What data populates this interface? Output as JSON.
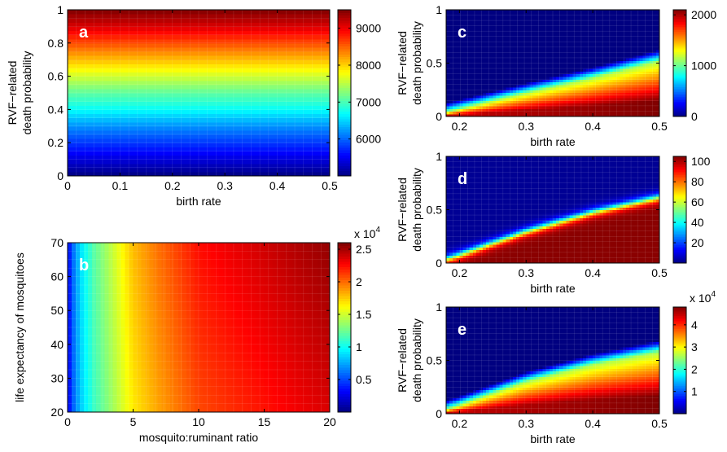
{
  "chart_data": [
    {
      "panel": "a",
      "type": "heatmap",
      "letter": "a",
      "xlabel": "birth rate",
      "ylabel": [
        "RVF−related",
        "death probability"
      ],
      "xlim": [
        0,
        0.5
      ],
      "ylim": [
        0,
        1
      ],
      "xticks": [
        0,
        0.1,
        0.2,
        0.3,
        0.4,
        0.5
      ],
      "xtick_labels": [
        "0",
        "0.1",
        "0.2",
        "0.3",
        "0.4",
        "0.5"
      ],
      "yticks": [
        0,
        0.2,
        0.4,
        0.6,
        0.8,
        1
      ],
      "ytick_labels": [
        "0",
        "0.2",
        "0.4",
        "0.6",
        "0.8",
        "1"
      ],
      "colorbar": {
        "range": [
          5000,
          9500
        ],
        "ticks": [
          6000,
          7000,
          8000,
          9000
        ],
        "tick_labels": [
          "6000",
          "7000",
          "8000",
          "9000"
        ],
        "multiplier": ""
      },
      "pattern": "horizontal",
      "samples": {
        "description_axis": "y (death probability) vs value (roughly independent of birth rate)",
        "y": [
          0,
          0.1,
          0.2,
          0.3,
          0.4,
          0.5,
          0.6,
          0.7,
          0.8,
          0.9,
          1.0
        ],
        "value": [
          5000,
          5400,
          5800,
          6200,
          6700,
          7100,
          7600,
          8100,
          8600,
          9100,
          9500
        ]
      }
    },
    {
      "panel": "b",
      "type": "heatmap",
      "letter": "b",
      "xlabel": "mosquito:ruminant ratio",
      "ylabel": [
        "life expectancy of mosquitoes"
      ],
      "xlim": [
        0,
        20
      ],
      "ylim": [
        20,
        70
      ],
      "xticks": [
        0,
        5,
        10,
        15,
        20
      ],
      "xtick_labels": [
        "0",
        "5",
        "10",
        "15",
        "20"
      ],
      "yticks": [
        20,
        30,
        40,
        50,
        60,
        70
      ],
      "ytick_labels": [
        "20",
        "30",
        "40",
        "50",
        "60",
        "70"
      ],
      "colorbar": {
        "range": [
          0,
          26000
        ],
        "ticks": [
          5000,
          10000,
          15000,
          20000,
          25000
        ],
        "tick_labels": [
          "0.5",
          "1",
          "1.5",
          "2",
          "2.5"
        ],
        "multiplier": "x 10",
        "exponent": "4"
      },
      "pattern": "saturating",
      "samples": {
        "description_axis": "x (mosquito:ruminant ratio) vs value (weak dependence on life expectancy)",
        "x": [
          0,
          0.5,
          1,
          2,
          3,
          4,
          5,
          7,
          10,
          15,
          20
        ],
        "value": [
          3000,
          6500,
          9000,
          12000,
          14000,
          16000,
          18000,
          20000,
          22500,
          24000,
          25500
        ]
      }
    },
    {
      "panel": "c",
      "type": "heatmap",
      "letter": "c",
      "xlabel": "birth rate",
      "ylabel": [
        "RVF−related",
        "death probability"
      ],
      "xlim": [
        0.18,
        0.5
      ],
      "ylim": [
        0,
        1
      ],
      "xticks": [
        0.2,
        0.3,
        0.4,
        0.5
      ],
      "xtick_labels": [
        "0.2",
        "0.3",
        "0.4",
        "0.5"
      ],
      "yticks": [
        0,
        0.5,
        1
      ],
      "ytick_labels": [
        "0",
        "0.5",
        "1"
      ],
      "colorbar": {
        "range": [
          0,
          2100
        ],
        "ticks": [
          0,
          1000,
          2000
        ],
        "tick_labels": [
          "0",
          "1000",
          "2000"
        ],
        "multiplier": ""
      },
      "pattern": "wedge",
      "boundary": {
        "x": [
          0.18,
          0.2,
          0.3,
          0.4,
          0.5
        ],
        "y": [
          0.04,
          0.07,
          0.22,
          0.36,
          0.52
        ]
      },
      "band_width": 0.22
    },
    {
      "panel": "d",
      "type": "heatmap",
      "letter": "d",
      "xlabel": "birth rate",
      "ylabel": [
        "RVF−related",
        "death probability"
      ],
      "xlim": [
        0.18,
        0.5
      ],
      "ylim": [
        0,
        1
      ],
      "xticks": [
        0.2,
        0.3,
        0.4,
        0.5
      ],
      "xtick_labels": [
        "0.2",
        "0.3",
        "0.4",
        "0.5"
      ],
      "yticks": [
        0,
        0.5,
        1
      ],
      "ytick_labels": [
        "0",
        "0.5",
        "1"
      ],
      "colorbar": {
        "range": [
          0,
          105
        ],
        "ticks": [
          20,
          40,
          60,
          80,
          100
        ],
        "tick_labels": [
          "20",
          "40",
          "60",
          "80",
          "100"
        ],
        "multiplier": ""
      },
      "pattern": "step",
      "boundary": {
        "x": [
          0.18,
          0.2,
          0.3,
          0.4,
          0.5
        ],
        "y": [
          0.04,
          0.08,
          0.3,
          0.48,
          0.62
        ]
      },
      "band_width": 0.12
    },
    {
      "panel": "e",
      "type": "heatmap",
      "letter": "e",
      "xlabel": "birth rate",
      "ylabel": [
        "RVF−related",
        "death probability"
      ],
      "xlim": [
        0.18,
        0.5
      ],
      "ylim": [
        0,
        1
      ],
      "xticks": [
        0.2,
        0.3,
        0.4,
        0.5
      ],
      "xtick_labels": [
        "0.2",
        "0.3",
        "0.4",
        "0.5"
      ],
      "yticks": [
        0,
        0.5,
        1
      ],
      "ytick_labels": [
        "0",
        "0.5",
        "1"
      ],
      "colorbar": {
        "range": [
          0,
          48000
        ],
        "ticks": [
          10000,
          20000,
          30000,
          40000
        ],
        "tick_labels": [
          "1",
          "2",
          "3",
          "4"
        ],
        "multiplier": "x 10",
        "exponent": "4"
      },
      "pattern": "wedge",
      "boundary": {
        "x": [
          0.18,
          0.2,
          0.3,
          0.4,
          0.5
        ],
        "y": [
          0.04,
          0.08,
          0.3,
          0.46,
          0.58
        ]
      },
      "band_width": 0.22
    }
  ]
}
